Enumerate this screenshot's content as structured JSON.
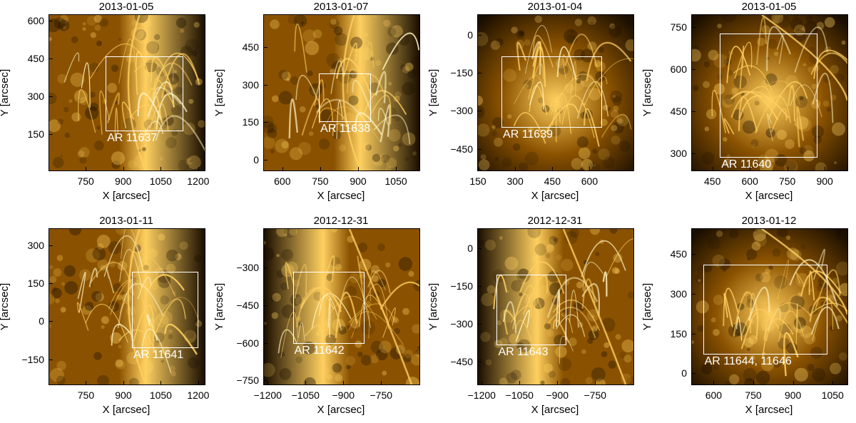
{
  "axis_labels": {
    "x": "X [arcsec]",
    "y": "Y [arcsec]"
  },
  "colors": {
    "dark": "#1a0e00",
    "mid": "#8a5200",
    "bright": "#ffd060",
    "hot": "#fff3c0",
    "box": "#ffffff"
  },
  "panels": [
    {
      "date": "2013-01-05",
      "ar": "AR 11637",
      "xlim": [
        604,
        1226
      ],
      "ylim": [
        5,
        624
      ],
      "xticks": [
        "750",
        "900",
        "1050",
        "1200"
      ],
      "xvals": [
        750,
        900,
        1050,
        1200
      ],
      "yticks": [
        "600",
        "450",
        "300",
        "150"
      ],
      "yvals": [
        600,
        450,
        300,
        150
      ],
      "box": {
        "x": [
          830,
          1140
        ],
        "y": [
          160,
          460
        ]
      },
      "limb": "right"
    },
    {
      "date": "2013-01-07",
      "ar": "AR 11638",
      "xlim": [
        527,
        1143
      ],
      "ylim": [
        -42,
        577
      ],
      "xticks": [
        "600",
        "750",
        "900",
        "1050"
      ],
      "xvals": [
        600,
        750,
        900,
        1050
      ],
      "yticks": [
        "450",
        "300",
        "150",
        "0"
      ],
      "yvals": [
        450,
        300,
        150,
        0
      ],
      "box": {
        "x": [
          745,
          950
        ],
        "y": [
          150,
          345
        ]
      },
      "limb": "right"
    },
    {
      "date": "2013-01-04",
      "ar": "AR 11639",
      "xlim": [
        150,
        777
      ],
      "ylim": [
        -535,
        78
      ],
      "xticks": [
        "150",
        "300",
        "450",
        "600"
      ],
      "xvals": [
        150,
        300,
        450,
        600
      ],
      "yticks": [
        "0",
        "−150",
        "−300",
        "−450"
      ],
      "yvals": [
        0,
        -150,
        -300,
        -450
      ],
      "box": {
        "x": [
          245,
          650
        ],
        "y": [
          -365,
          -85
        ]
      },
      "limb": "none"
    },
    {
      "date": "2013-01-05",
      "ar": "AR 11640",
      "xlim": [
        368,
        991
      ],
      "ylim": [
        240,
        792
      ],
      "xticks": [
        "450",
        "600",
        "750",
        "900"
      ],
      "xvals": [
        450,
        600,
        750,
        900
      ],
      "yticks": [
        "750",
        "600",
        "450",
        "300"
      ],
      "yvals": [
        750,
        600,
        450,
        300
      ],
      "box": {
        "x": [
          480,
          870
        ],
        "y": [
          285,
          725
        ]
      },
      "limb": "arc"
    },
    {
      "date": "2013-01-11",
      "ar": "AR 11641",
      "xlim": [
        603,
        1226
      ],
      "ylim": [
        -250,
        365
      ],
      "xticks": [
        "750",
        "900",
        "1050",
        "1200"
      ],
      "xvals": [
        750,
        900,
        1050,
        1200
      ],
      "yticks": [
        "300",
        "150",
        "0",
        "−150"
      ],
      "yvals": [
        300,
        150,
        0,
        -150
      ],
      "box": {
        "x": [
          935,
          1200
        ],
        "y": [
          -105,
          195
        ]
      },
      "limb": "right"
    },
    {
      "date": "2012-12-31",
      "ar": "AR 11642",
      "xlim": [
        -1215,
        -598
      ],
      "ylim": [
        -766,
        -145
      ],
      "xticks": [
        "−1200",
        "−1050",
        "−900",
        "−750"
      ],
      "xvals": [
        -1200,
        -1050,
        -900,
        -750
      ],
      "yticks": [
        "−300",
        "−450",
        "−600",
        "−750"
      ],
      "yvals": [
        -300,
        -450,
        -600,
        -750
      ],
      "box": {
        "x": [
          -1100,
          -815
        ],
        "y": [
          -605,
          -315
        ]
      },
      "limb": "left"
    },
    {
      "date": "2012-12-31",
      "ar": "AR 11643",
      "xlim": [
        -1215,
        -598
      ],
      "ylim": [
        -540,
        75
      ],
      "xticks": [
        "−1200",
        "−1050",
        "−900",
        "−750"
      ],
      "xvals": [
        -1200,
        -1050,
        -900,
        -750
      ],
      "yticks": [
        "0",
        "−150",
        "−300",
        "−450"
      ],
      "yvals": [
        0,
        -150,
        -300,
        -450
      ],
      "box": {
        "x": [
          -1140,
          -865
        ],
        "y": [
          -385,
          -105
        ]
      },
      "limb": "left"
    },
    {
      "date": "2013-01-12",
      "ar": "AR 11644, 11646",
      "xlim": [
        518,
        1106
      ],
      "ylim": [
        -42,
        545
      ],
      "xticks": [
        "600",
        "750",
        "900",
        "1050"
      ],
      "xvals": [
        600,
        750,
        900,
        1050
      ],
      "yticks": [
        "450",
        "300",
        "150",
        "0"
      ],
      "yvals": [
        450,
        300,
        150,
        0
      ],
      "box": {
        "x": [
          560,
          1030
        ],
        "y": [
          70,
          410
        ]
      },
      "limb": "arc"
    }
  ]
}
